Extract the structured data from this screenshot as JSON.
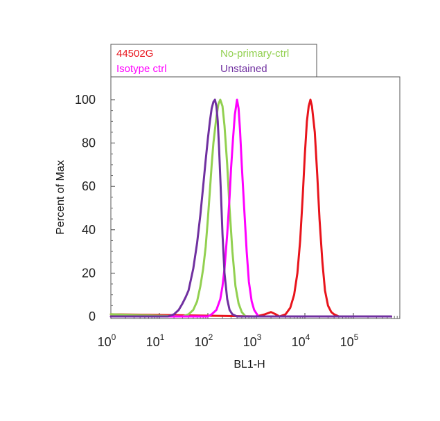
{
  "chart_data": {
    "type": "line",
    "title": "",
    "xlabel": "BL1-H",
    "ylabel": "Percent of Max",
    "xscale": "log",
    "xlim": [
      1,
      600000
    ],
    "ylim": [
      0,
      110
    ],
    "x_ticks": [
      {
        "base": "10",
        "exp": "0",
        "value": 1
      },
      {
        "base": "10",
        "exp": "1",
        "value": 10
      },
      {
        "base": "10",
        "exp": "2",
        "value": 100
      },
      {
        "base": "10",
        "exp": "3",
        "value": 1000
      },
      {
        "base": "10",
        "exp": "4",
        "value": 10000
      },
      {
        "base": "10",
        "exp": "5",
        "value": 100000
      }
    ],
    "y_ticks": [
      0,
      20,
      40,
      60,
      80,
      100
    ],
    "grid": false,
    "legend_placement": "top-left, above plot",
    "series": [
      {
        "name": "44502G",
        "color": "#e8141c",
        "x": [
          1,
          1000,
          1500,
          2000,
          2500,
          3000,
          4000,
          5000,
          6000,
          7000,
          8000,
          9000,
          10000,
          11000,
          12000,
          13000,
          14000,
          16000,
          18000,
          20000,
          23000,
          26000,
          30000,
          35000,
          40000,
          50000,
          600000
        ],
        "y": [
          1,
          0,
          1,
          2,
          1,
          0,
          1,
          4,
          10,
          20,
          35,
          55,
          75,
          90,
          97,
          100,
          97,
          85,
          65,
          45,
          25,
          12,
          5,
          2,
          1,
          0,
          0
        ]
      },
      {
        "name": "No-primary-ctrl",
        "color": "#92d050",
        "x": [
          1,
          30,
          40,
          50,
          60,
          70,
          80,
          90,
          100,
          110,
          120,
          130,
          150,
          165,
          180,
          200,
          220,
          250,
          280,
          320,
          370,
          430,
          500,
          600,
          1000,
          600000
        ],
        "y": [
          1,
          0,
          1,
          3,
          7,
          14,
          22,
          32,
          45,
          58,
          70,
          80,
          92,
          98,
          100,
          97,
          88,
          70,
          50,
          30,
          14,
          6,
          2,
          0,
          0,
          0
        ]
      },
      {
        "name": "Isotype ctrl",
        "color": "#ff00ff",
        "x": [
          1,
          100,
          120,
          150,
          180,
          200,
          220,
          250,
          280,
          300,
          330,
          360,
          400,
          430,
          460,
          500,
          560,
          630,
          700,
          800,
          900,
          1100,
          600000
        ],
        "y": [
          0,
          0,
          1,
          3,
          8,
          14,
          22,
          38,
          55,
          68,
          82,
          93,
          100,
          96,
          86,
          70,
          50,
          30,
          16,
          7,
          3,
          0,
          0
        ]
      },
      {
        "name": "Unstained",
        "color": "#7030a0",
        "x": [
          1,
          15,
          20,
          25,
          30,
          35,
          40,
          50,
          60,
          70,
          80,
          90,
          100,
          110,
          120,
          130,
          140,
          150,
          160,
          170,
          185,
          200,
          220,
          250,
          280,
          320,
          400,
          600000
        ],
        "y": [
          0,
          0,
          1,
          3,
          6,
          9,
          12,
          22,
          34,
          47,
          60,
          72,
          82,
          90,
          96,
          99,
          100,
          97,
          90,
          78,
          58,
          38,
          20,
          8,
          3,
          1,
          0,
          0
        ]
      }
    ]
  },
  "legend": {
    "entries": [
      {
        "label": "44502G",
        "color": "#e8141c"
      },
      {
        "label": "No-primary-ctrl",
        "color": "#92d050"
      },
      {
        "label": "Isotype ctrl",
        "color": "#ff00ff"
      },
      {
        "label": "Unstained",
        "color": "#7030a0"
      }
    ]
  }
}
